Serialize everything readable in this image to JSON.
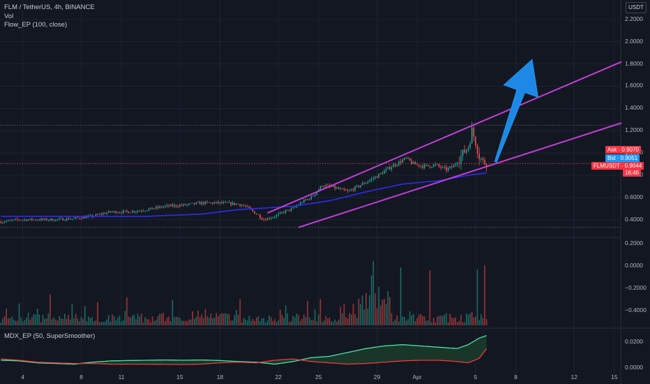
{
  "legend": {
    "main": "FLM / TetherUS, 4h, BINANCE",
    "vol": "Vol",
    "flow": "Flow_EP (100, close)",
    "mdx": "MDX_EP (50, SuperSmoother)"
  },
  "currency": "USDT",
  "tags": {
    "ask": "Ask · 0.9070",
    "bid": "Bid · 0.9051",
    "symbol": "FLMUSDT · 0.9044",
    "countdown": "16:46"
  },
  "colors": {
    "background": "#131722",
    "up": "#26a69a",
    "down": "#ef5350",
    "ma": "#2b2ef0",
    "channel": "#c23fd6",
    "arrow": "#1e88e5",
    "mdx_fast": "#4fe3a7",
    "mdx_slow": "#ef3b3b"
  },
  "chart_data": [
    {
      "type": "candlestick",
      "yaxis": {
        "ticks": [
          "2.2000",
          "2.0000",
          "1.8000",
          "1.6000",
          "1.4000",
          "1.2000",
          "1.0000",
          "0.8000",
          "0.6000",
          "0.4000"
        ],
        "ylim": [
          0.3,
          2.3
        ]
      },
      "xaxis": {
        "ticks": [
          "4",
          "8",
          "11",
          "15",
          "18",
          "22",
          "25",
          "29",
          "Apr",
          "5",
          "8",
          "12",
          "15"
        ]
      },
      "last_price": 0.9044,
      "horizontal_lines": [
        1.25,
        0.9044,
        0.33
      ],
      "series_path": [
        [
          0,
          0.38
        ],
        [
          10,
          0.4
        ],
        [
          20,
          0.4
        ],
        [
          30,
          0.4
        ],
        [
          40,
          0.41
        ],
        [
          50,
          0.43
        ],
        [
          60,
          0.47
        ],
        [
          70,
          0.47
        ],
        [
          80,
          0.49
        ],
        [
          90,
          0.52
        ],
        [
          100,
          0.53
        ],
        [
          110,
          0.55
        ],
        [
          120,
          0.55
        ],
        [
          130,
          0.54
        ],
        [
          135,
          0.51
        ],
        [
          140,
          0.45
        ],
        [
          144,
          0.4
        ],
        [
          150,
          0.43
        ],
        [
          155,
          0.47
        ],
        [
          160,
          0.5
        ],
        [
          165,
          0.56
        ],
        [
          170,
          0.6
        ],
        [
          176,
          0.71
        ],
        [
          182,
          0.69
        ],
        [
          190,
          0.65
        ],
        [
          198,
          0.72
        ],
        [
          206,
          0.79
        ],
        [
          214,
          0.88
        ],
        [
          222,
          0.95
        ],
        [
          226,
          0.9
        ],
        [
          232,
          0.88
        ],
        [
          238,
          0.89
        ],
        [
          244,
          0.85
        ],
        [
          248,
          0.88
        ],
        [
          252,
          0.97
        ],
        [
          256,
          1.06
        ],
        [
          258,
          1.2
        ],
        [
          260,
          1.1
        ],
        [
          262,
          0.97
        ],
        [
          264,
          0.92
        ],
        [
          266,
          0.91
        ]
      ],
      "moving_average": [
        [
          0,
          0.43
        ],
        [
          40,
          0.43
        ],
        [
          80,
          0.43
        ],
        [
          110,
          0.45
        ],
        [
          130,
          0.49
        ],
        [
          140,
          0.5
        ],
        [
          160,
          0.52
        ],
        [
          180,
          0.57
        ],
        [
          200,
          0.65
        ],
        [
          220,
          0.72
        ],
        [
          240,
          0.75
        ],
        [
          256,
          0.8
        ],
        [
          266,
          0.82
        ]
      ],
      "channel_upper": [
        [
          146,
          0.46
        ],
        [
          340,
          1.82
        ]
      ],
      "channel_lower": [
        [
          163,
          0.33
        ],
        [
          340,
          1.27
        ]
      ],
      "arrow": {
        "from": [
          271,
          0.92
        ],
        "to": [
          291,
          1.84
        ]
      }
    },
    {
      "type": "bar",
      "name": "Vol",
      "yaxis": {
        "ticks": [
          "0.2000",
          "0.0000",
          "−0.2000",
          "−0.4000"
        ]
      }
    },
    {
      "type": "line",
      "name": "MDX_EP (50, SuperSmoother)",
      "yaxis": {
        "ticks": [
          "0.0200",
          "0.0000"
        ],
        "ylim": [
          -0.001,
          0.028
        ]
      },
      "series": [
        {
          "values": [
            [
              0,
              0.006
            ],
            [
              10,
              0.0055
            ],
            [
              20,
              0.004
            ],
            [
              30,
              0.0035
            ],
            [
              40,
              0.003
            ],
            [
              50,
              0.0045
            ],
            [
              60,
              0.0055
            ],
            [
              70,
              0.0058
            ],
            [
              80,
              0.006
            ],
            [
              90,
              0.0062
            ],
            [
              100,
              0.006
            ],
            [
              110,
              0.0062
            ],
            [
              120,
              0.0058
            ],
            [
              130,
              0.005
            ],
            [
              140,
              0.0045
            ],
            [
              150,
              0.003
            ],
            [
              160,
              0.005
            ],
            [
              170,
              0.008
            ],
            [
              180,
              0.009
            ],
            [
              190,
              0.012
            ],
            [
              200,
              0.015
            ],
            [
              210,
              0.017
            ],
            [
              220,
              0.018
            ],
            [
              230,
              0.017
            ],
            [
              240,
              0.016
            ],
            [
              250,
              0.015
            ],
            [
              256,
              0.018
            ],
            [
              262,
              0.023
            ],
            [
              266,
              0.025
            ]
          ]
        },
        {
          "values": [
            [
              0,
              0.007
            ],
            [
              10,
              0.006
            ],
            [
              20,
              0.0045
            ],
            [
              30,
              0.004
            ],
            [
              40,
              0.0035
            ],
            [
              50,
              0.0035
            ],
            [
              60,
              0.003
            ],
            [
              70,
              0.003
            ],
            [
              80,
              0.003
            ],
            [
              90,
              0.0028
            ],
            [
              100,
              0.0027
            ],
            [
              110,
              0.003
            ],
            [
              120,
              0.004
            ],
            [
              130,
              0.0045
            ],
            [
              140,
              0.004
            ],
            [
              150,
              0.006
            ],
            [
              160,
              0.007
            ],
            [
              170,
              0.005
            ],
            [
              180,
              0.004
            ],
            [
              190,
              0.003
            ],
            [
              200,
              0.0035
            ],
            [
              210,
              0.0045
            ],
            [
              220,
              0.0055
            ],
            [
              230,
              0.006
            ],
            [
              240,
              0.006
            ],
            [
              250,
              0.005
            ],
            [
              256,
              0.004
            ],
            [
              262,
              0.0075
            ],
            [
              266,
              0.015
            ]
          ]
        }
      ]
    }
  ]
}
